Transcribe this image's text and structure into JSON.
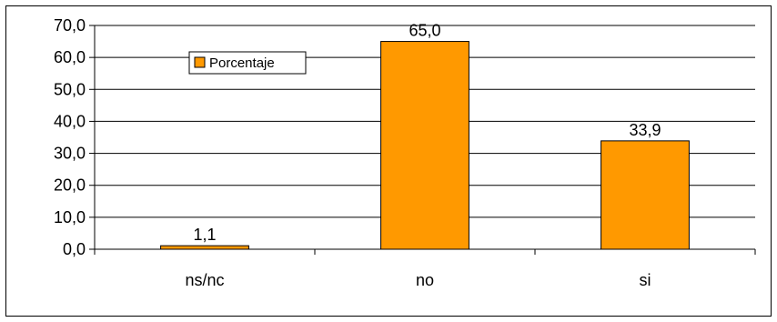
{
  "chart_data": {
    "type": "bar",
    "categories": [
      "ns/nc",
      "no",
      "si"
    ],
    "series": [
      {
        "name": "Porcentaje",
        "values": [
          1.1,
          65.0,
          33.9
        ],
        "color": "#FF9900"
      }
    ],
    "data_labels": [
      "1,1",
      "65,0",
      "33,9"
    ],
    "y_tick_labels": [
      "0,0",
      "10,0",
      "20,0",
      "30,0",
      "40,0",
      "50,0",
      "60,0",
      "70,0"
    ],
    "ylim": [
      0,
      70
    ],
    "ytick_step": 10,
    "grid": true,
    "legend": {
      "position": "top-left-inside"
    }
  }
}
